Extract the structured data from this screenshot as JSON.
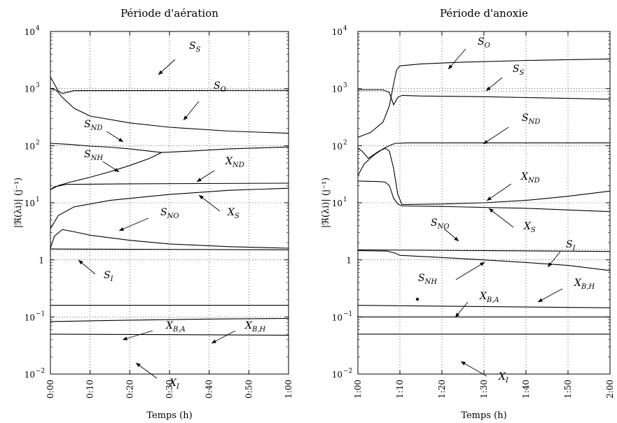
{
  "chart_data": [
    {
      "type": "line",
      "title": "Période d'aération",
      "xlabel": "Temps (h)",
      "ylabel": "|ℜ(λi)| (j⁻¹)",
      "yscale": "log",
      "ylim": [
        0.01,
        10000
      ],
      "xlim": [
        0,
        60
      ],
      "x_ticks": [
        0,
        10,
        20,
        30,
        40,
        50,
        60
      ],
      "x_tick_labels": [
        "0:00",
        "0:10",
        "0:20",
        "0:30",
        "0:40",
        "0:50",
        "1:00"
      ],
      "y_ticks": [
        0.01,
        0.1,
        1,
        10,
        100,
        1000,
        10000
      ],
      "y_tick_labels": [
        [
          "10",
          "−2"
        ],
        [
          "10",
          "−1"
        ],
        [
          "1",
          ""
        ],
        [
          "10",
          "1"
        ],
        [
          "10",
          "2"
        ],
        [
          "10",
          "3"
        ],
        [
          "10",
          "4"
        ]
      ],
      "grid": true,
      "series": [
        {
          "name": "S_S",
          "x": [
            0,
            2,
            3,
            6,
            60
          ],
          "y": [
            1600,
            900,
            820,
            920,
            930
          ]
        },
        {
          "name": "S_O",
          "x": [
            0,
            1.5,
            3,
            6,
            10,
            20,
            30,
            45,
            60
          ],
          "y": [
            1000,
            930,
            700,
            450,
            330,
            250,
            210,
            180,
            165
          ]
        },
        {
          "name": "S_ND",
          "x": [
            0,
            5,
            10,
            15,
            20,
            25,
            28
          ],
          "y": [
            110,
            105,
            98,
            94,
            88,
            80,
            76
          ]
        },
        {
          "name": "S_NH",
          "x": [
            0,
            2,
            5,
            10,
            15,
            20,
            25,
            28,
            35,
            45,
            60
          ],
          "y": [
            17,
            20,
            23,
            28,
            35,
            45,
            60,
            76,
            80,
            88,
            95
          ]
        },
        {
          "name": "X_ND",
          "x": [
            0,
            1,
            4,
            20,
            60
          ],
          "y": [
            17,
            19,
            21,
            21.5,
            22
          ]
        },
        {
          "name": "X_S",
          "x": [
            0,
            2,
            6,
            15,
            30,
            45,
            60
          ],
          "y": [
            3.5,
            6,
            8.5,
            11,
            14,
            16.5,
            18
          ]
        },
        {
          "name": "S_NO",
          "x": [
            0,
            1,
            3,
            6,
            10,
            20,
            30,
            45,
            60
          ],
          "y": [
            1.6,
            2.6,
            3.4,
            3.1,
            2.7,
            2.2,
            1.9,
            1.7,
            1.6
          ]
        },
        {
          "name": "S_I",
          "x": [
            0,
            60
          ],
          "y": [
            1.55,
            1.5
          ]
        },
        {
          "name": "X_B,H",
          "x": [
            0,
            60
          ],
          "y": [
            0.16,
            0.16
          ]
        },
        {
          "name": "X_B,A",
          "x": [
            0,
            20,
            40,
            60
          ],
          "y": [
            0.083,
            0.088,
            0.092,
            0.094
          ]
        },
        {
          "name": "X_I",
          "x": [
            0,
            60
          ],
          "y": [
            0.05,
            0.048
          ]
        }
      ],
      "dotted_reference_lines": [
        900,
        1.5
      ],
      "labels": [
        {
          "series": "S_S",
          "base": "S",
          "sub": "S"
        },
        {
          "series": "S_O",
          "base": "S",
          "sub": "O"
        },
        {
          "series": "S_ND",
          "base": "S",
          "sub": "ND"
        },
        {
          "series": "S_NH",
          "base": "S",
          "sub": "NH"
        },
        {
          "series": "X_ND",
          "base": "X",
          "sub": "ND"
        },
        {
          "series": "X_S",
          "base": "X",
          "sub": "S"
        },
        {
          "series": "S_NO",
          "base": "S",
          "sub": "NO"
        },
        {
          "series": "S_I",
          "base": "S",
          "sub": "I"
        },
        {
          "series": "X_B,A",
          "base": "X",
          "sub": "B,A"
        },
        {
          "series": "X_B,H",
          "base": "X",
          "sub": "B,H"
        },
        {
          "series": "X_I",
          "base": "X",
          "sub": "I"
        }
      ]
    },
    {
      "type": "line",
      "title": "Période d'anoxie",
      "xlabel": "Temps (h)",
      "ylabel": "|ℜ(λi)| (j⁻¹)",
      "yscale": "log",
      "ylim": [
        0.01,
        10000
      ],
      "xlim": [
        60,
        120
      ],
      "x_ticks": [
        60,
        70,
        80,
        90,
        100,
        110,
        120
      ],
      "x_tick_labels": [
        "1:00",
        "1:10",
        "1:20",
        "1:30",
        "1:40",
        "1:50",
        "2:00"
      ],
      "y_ticks": [
        0.01,
        0.1,
        1,
        10,
        100,
        1000,
        10000
      ],
      "y_tick_labels": [
        [
          "10",
          "−2"
        ],
        [
          "10",
          "−1"
        ],
        [
          "1",
          ""
        ],
        [
          "10",
          "1"
        ],
        [
          "10",
          "2"
        ],
        [
          "10",
          "3"
        ],
        [
          "10",
          "4"
        ]
      ],
      "grid": true,
      "series": [
        {
          "name": "S_O",
          "x": [
            60,
            63,
            66,
            67.5,
            68.5,
            69.2,
            70,
            75,
            85,
            100,
            120
          ],
          "y": [
            140,
            170,
            260,
            500,
            1200,
            2100,
            2500,
            2700,
            2900,
            3100,
            3300
          ]
        },
        {
          "name": "S_S",
          "x": [
            60,
            66,
            67.5,
            68.5,
            69.5,
            70.5,
            75,
            90,
            120
          ],
          "y": [
            950,
            950,
            850,
            520,
            700,
            760,
            740,
            720,
            650
          ]
        },
        {
          "name": "S_ND",
          "x": [
            60,
            61.5,
            64,
            66,
            67,
            68,
            69,
            72,
            120
          ],
          "y": [
            30,
            48,
            70,
            88,
            96,
            104,
            110,
            112,
            112
          ]
        },
        {
          "name": "X_ND",
          "x": [
            60,
            61,
            62.5,
            65,
            66.5,
            67.5,
            68.5,
            69.5,
            70.5,
            80,
            90,
            100,
            110,
            120
          ],
          "y": [
            90,
            80,
            60,
            80,
            90,
            80,
            40,
            14,
            9.3,
            9.5,
            10,
            11,
            13,
            16
          ]
        },
        {
          "name": "X_S",
          "x": [
            60,
            65,
            66.5,
            67.5,
            68.5,
            69.5,
            70.5,
            80,
            100,
            120
          ],
          "y": [
            24,
            23.5,
            23,
            20,
            12,
            9.5,
            8.8,
            8.6,
            8,
            7
          ]
        },
        {
          "name": "S_NO",
          "x": [
            60,
            120
          ],
          "y": [
            1.5,
            1.4
          ]
        },
        {
          "name": "S_NH",
          "x": [
            60,
            67,
            69,
            70,
            80,
            90,
            100,
            110,
            120
          ],
          "y": [
            1.45,
            1.42,
            1.3,
            1.2,
            1.1,
            1,
            0.9,
            0.8,
            0.65
          ]
        },
        {
          "name": "X_B,H",
          "x": [
            60,
            120
          ],
          "y": [
            0.16,
            0.145
          ]
        },
        {
          "name": "X_B,A",
          "x": [
            60,
            120
          ],
          "y": [
            0.1,
            0.1
          ]
        },
        {
          "name": "X_I",
          "x": [
            60,
            120
          ],
          "y": [
            0.05,
            0.05
          ]
        }
      ],
      "dotted_reference_lines": [
        900,
        1.5
      ],
      "labels": [
        {
          "series": "S_O",
          "base": "S",
          "sub": "O"
        },
        {
          "series": "S_S",
          "base": "S",
          "sub": "S"
        },
        {
          "series": "S_ND",
          "base": "S",
          "sub": "ND"
        },
        {
          "series": "X_ND",
          "base": "X",
          "sub": "ND"
        },
        {
          "series": "S_NO",
          "base": "S",
          "sub": "NO"
        },
        {
          "series": "X_S",
          "base": "X",
          "sub": "S"
        },
        {
          "series": "S_I",
          "base": "S",
          "sub": "I"
        },
        {
          "series": "S_NH",
          "base": "S",
          "sub": "NH"
        },
        {
          "series": "X_B,H",
          "base": "X",
          "sub": "B,H"
        },
        {
          "series": "X_B,A",
          "base": "X",
          "sub": "B,A"
        },
        {
          "series": "X_I",
          "base": "X",
          "sub": "I"
        }
      ]
    }
  ]
}
